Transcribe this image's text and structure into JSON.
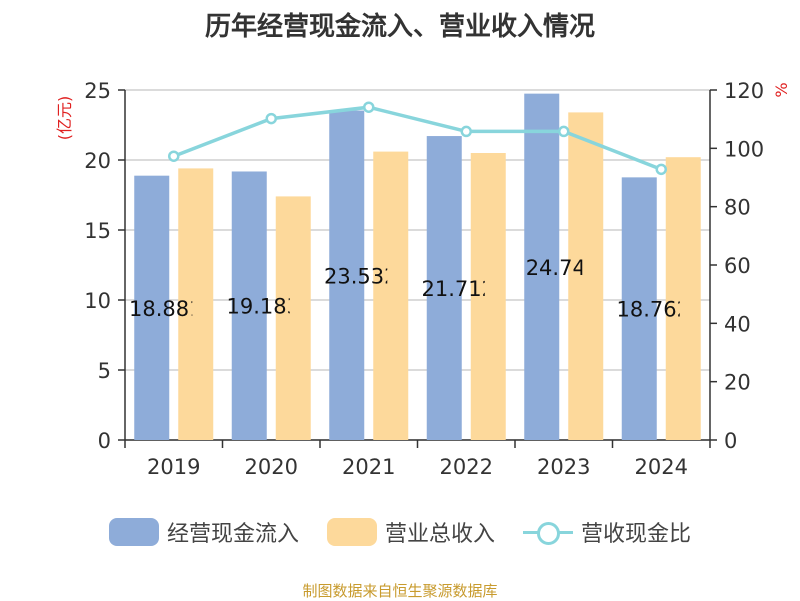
{
  "chart_data": {
    "type": "bar",
    "title": "历年经营现金流入、营业收入情况",
    "categories": [
      "2019",
      "2020",
      "2021",
      "2022",
      "2023",
      "2024"
    ],
    "y_left": {
      "label": "(亿元)",
      "ylim": [
        0,
        25
      ],
      "ticks": [
        0,
        5,
        10,
        15,
        20,
        25
      ]
    },
    "y_right": {
      "label": "%",
      "ylim": [
        0,
        120
      ],
      "ticks": [
        0,
        20,
        40,
        60,
        80,
        100,
        120
      ]
    },
    "series": [
      {
        "name": "经营现金流入",
        "type": "bar",
        "axis": "left",
        "color": "#8eacd9",
        "values": [
          18.88,
          19.18,
          23.53,
          21.71,
          24.74,
          18.76
        ],
        "labels": [
          "18.881",
          "19.183",
          "23.532",
          "21.712",
          "24.74",
          "18.762"
        ]
      },
      {
        "name": "营业总收入",
        "type": "bar",
        "axis": "left",
        "color": "#fdd99b",
        "values": [
          19.4,
          17.4,
          20.6,
          20.5,
          23.4,
          20.2
        ]
      },
      {
        "name": "营收现金比",
        "type": "line",
        "axis": "right",
        "color": "#88d5dc",
        "values": [
          97.3,
          110.2,
          114.1,
          105.8,
          105.8,
          92.8
        ]
      }
    ],
    "grid": true,
    "legend": "bottom",
    "source": "制图数据来自恒生聚源数据库"
  }
}
